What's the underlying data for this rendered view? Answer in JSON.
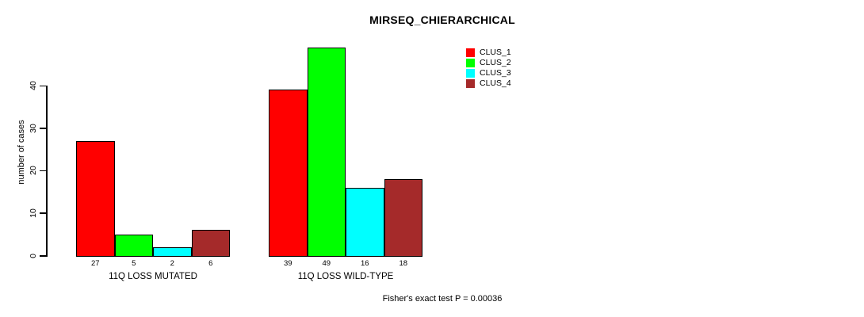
{
  "chart_data": {
    "type": "bar",
    "title": "MIRSEQ_CHIERARCHICAL",
    "ylabel": "number of cases",
    "xlabel": "",
    "categories": [
      "11Q LOSS MUTATED",
      "11Q LOSS WILD-TYPE"
    ],
    "series": [
      {
        "name": "CLUS_1",
        "color": "#ff0000",
        "values": [
          27,
          39
        ]
      },
      {
        "name": "CLUS_2",
        "color": "#00ff00",
        "values": [
          5,
          49
        ]
      },
      {
        "name": "CLUS_3",
        "color": "#00ffff",
        "values": [
          2,
          16
        ]
      },
      {
        "name": "CLUS_4",
        "color": "#a52a2a",
        "values": [
          6,
          18
        ]
      }
    ],
    "yticks": [
      0,
      10,
      20,
      30,
      40
    ],
    "ylim": [
      0,
      40
    ],
    "grid": false,
    "legend_position": "top-right",
    "annotation": "Fisher's exact test P = 0.00036"
  }
}
